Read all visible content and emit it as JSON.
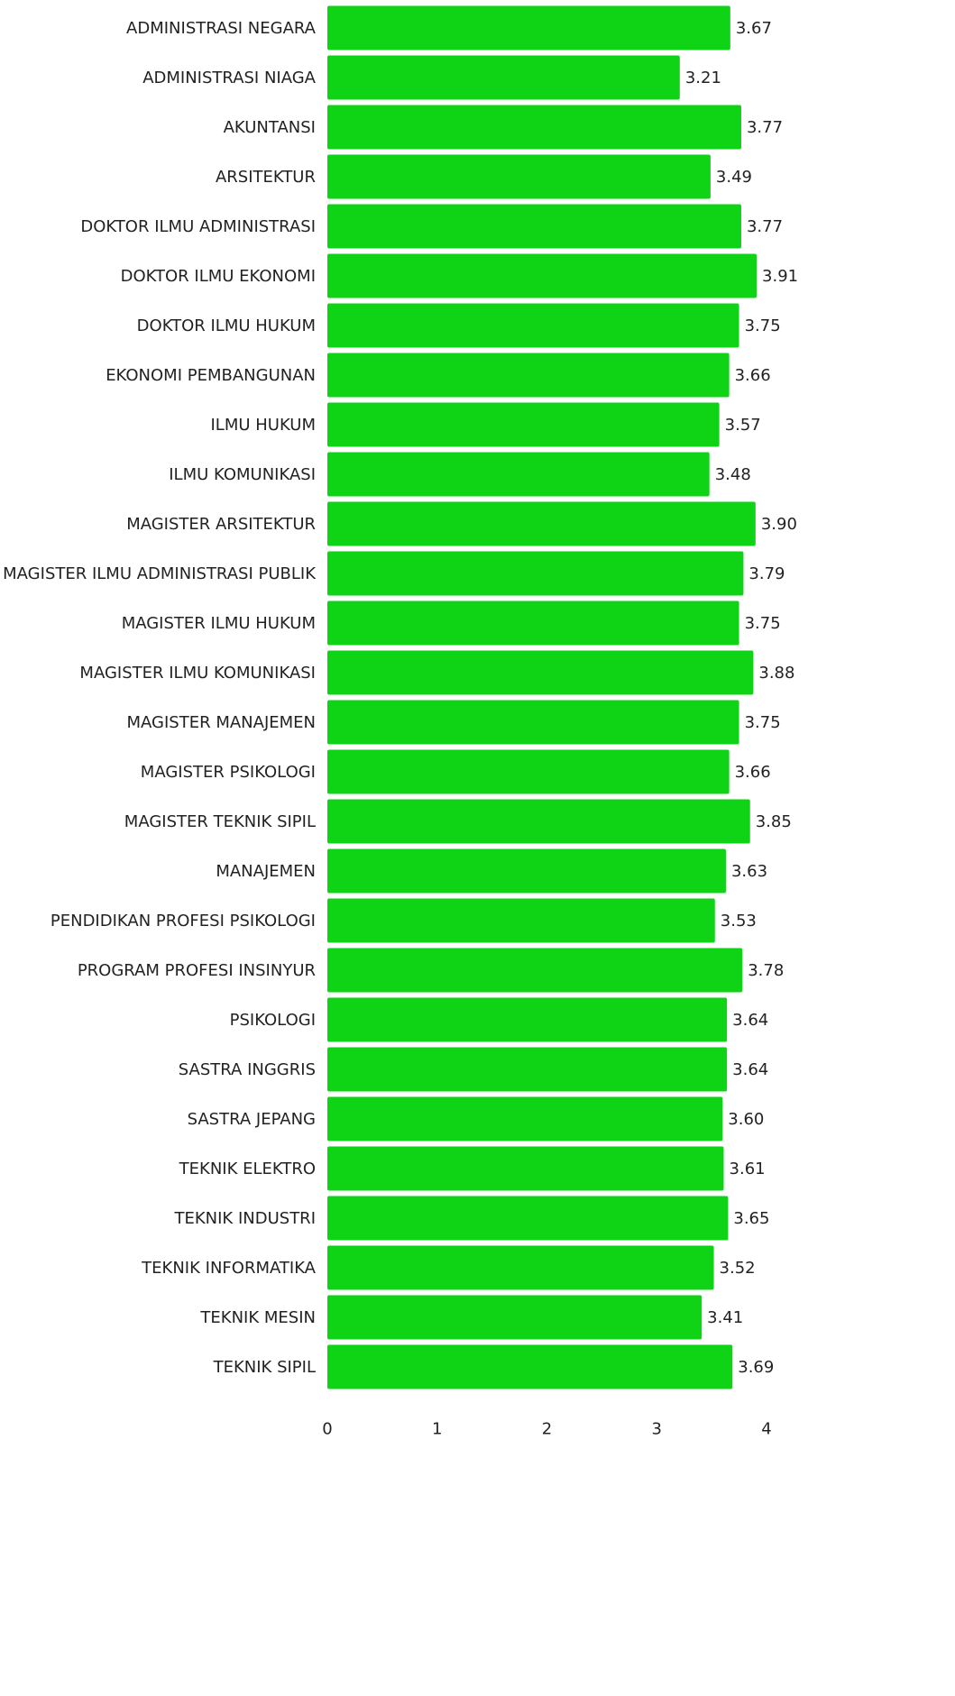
{
  "chart_data": {
    "type": "barh",
    "categories": [
      "ADMINISTRASI NEGARA",
      "ADMINISTRASI NIAGA",
      "AKUNTANSI",
      "ARSITEKTUR",
      "DOKTOR ILMU ADMINISTRASI",
      "DOKTOR ILMU EKONOMI",
      "DOKTOR ILMU HUKUM",
      "EKONOMI PEMBANGUNAN",
      "ILMU HUKUM",
      "ILMU KOMUNIKASI",
      "MAGISTER ARSITEKTUR",
      "MAGISTER ILMU ADMINISTRASI PUBLIK",
      "MAGISTER ILMU HUKUM",
      "MAGISTER ILMU KOMUNIKASI",
      "MAGISTER MANAJEMEN",
      "MAGISTER PSIKOLOGI",
      "MAGISTER TEKNIK SIPIL",
      "MANAJEMEN",
      "PENDIDIKAN PROFESI PSIKOLOGI",
      "PROGRAM PROFESI INSINYUR",
      "PSIKOLOGI",
      "SASTRA INGGRIS",
      "SASTRA JEPANG",
      "TEKNIK ELEKTRO",
      "TEKNIK INDUSTRI",
      "TEKNIK INFORMATIKA",
      "TEKNIK MESIN",
      "TEKNIK SIPIL"
    ],
    "values": [
      3.67,
      3.21,
      3.77,
      3.49,
      3.77,
      3.91,
      3.75,
      3.66,
      3.57,
      3.48,
      3.9,
      3.79,
      3.75,
      3.88,
      3.75,
      3.66,
      3.85,
      3.63,
      3.53,
      3.78,
      3.64,
      3.64,
      3.6,
      3.61,
      3.65,
      3.52,
      3.41,
      3.69
    ],
    "value_labels": [
      "3.67",
      "3.21",
      "3.77",
      "3.49",
      "3.77",
      "3.91",
      "3.75",
      "3.66",
      "3.57",
      "3.48",
      "3.90",
      "3.79",
      "3.75",
      "3.88",
      "3.75",
      "3.66",
      "3.85",
      "3.63",
      "3.53",
      "3.78",
      "3.64",
      "3.64",
      "3.60",
      "3.61",
      "3.65",
      "3.52",
      "3.41",
      "3.69"
    ],
    "color": "#0fd416",
    "xlim": [
      0,
      4
    ],
    "xticks": [
      0,
      1,
      2,
      3,
      4
    ]
  }
}
